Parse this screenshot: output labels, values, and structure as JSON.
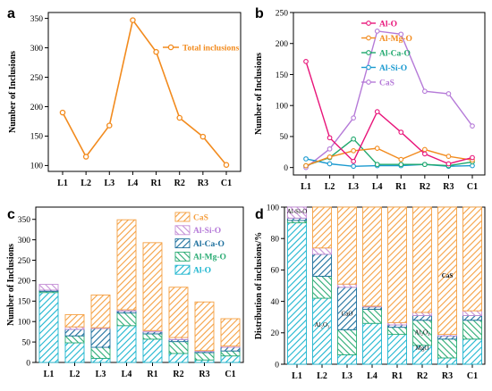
{
  "colors": {
    "Al-O": "#1cb5cf",
    "Al-Mg-O": "#2bac74",
    "Al-Ca-O": "#1b6e9c",
    "Al-Si-O": "#c58fd6",
    "CaS": "#f5a042",
    "line_Al-O": "#e8157a",
    "line_Al-Mg-O": "#f28b1e",
    "line_Al-Ca-O": "#1fa86d",
    "line_Al-Si-O": "#1a9ad0",
    "line_CaS": "#b57ad8",
    "total": "#f28b1e"
  },
  "chart_data": [
    {
      "panel": "a",
      "type": "line",
      "categories": [
        "L1",
        "L2",
        "L3",
        "L4",
        "R1",
        "R2",
        "R3",
        "C1"
      ],
      "series": [
        {
          "name": "Total inclusions",
          "values": [
            190,
            115,
            168,
            347,
            293,
            181,
            149,
            101
          ]
        }
      ],
      "ylabel": "Number of Inclusions",
      "ylim": [
        90,
        360
      ],
      "yticks": [
        100,
        150,
        200,
        250,
        300,
        350
      ]
    },
    {
      "panel": "b",
      "type": "line",
      "categories": [
        "L1",
        "L2",
        "L3",
        "L4",
        "R1",
        "R2",
        "R3",
        "C1"
      ],
      "series": [
        {
          "name": "Al-O",
          "values": [
            171,
            48,
            10,
            90,
            57,
            22,
            6,
            16
          ]
        },
        {
          "name": "Al-Mg-O",
          "values": [
            3,
            17,
            27,
            31,
            13,
            29,
            18,
            12
          ]
        },
        {
          "name": "Al-Ca-O",
          "values": [
            3,
            16,
            46,
            5,
            5,
            5,
            3,
            9
          ]
        },
        {
          "name": "Al-Si-O",
          "values": [
            14,
            6,
            2,
            3,
            3,
            5,
            2,
            3
          ]
        },
        {
          "name": "CaS",
          "values": [
            0,
            30,
            80,
            220,
            215,
            123,
            119,
            67
          ]
        }
      ],
      "ylabel": "Number of Inclusions",
      "ylim": [
        -12,
        250
      ],
      "yticks": [
        0,
        50,
        100,
        150,
        200,
        250
      ],
      "legend_position": "top-left"
    },
    {
      "panel": "c",
      "type": "bar",
      "stacked": true,
      "categories": [
        "L1",
        "L2",
        "L3",
        "L4",
        "R1",
        "R2",
        "R3",
        "C1"
      ],
      "series": [
        {
          "name": "Al-O",
          "values": [
            171,
            48,
            10,
            90,
            57,
            22,
            6,
            16
          ]
        },
        {
          "name": "Al-Mg-O",
          "values": [
            3,
            17,
            27,
            31,
            13,
            29,
            18,
            12
          ]
        },
        {
          "name": "Al-Ca-O",
          "values": [
            3,
            16,
            46,
            5,
            5,
            5,
            3,
            9
          ]
        },
        {
          "name": "Al-Si-O",
          "values": [
            14,
            6,
            2,
            3,
            3,
            5,
            2,
            3
          ]
        },
        {
          "name": "CaS",
          "values": [
            0,
            30,
            80,
            220,
            215,
            123,
            119,
            67
          ]
        }
      ],
      "ylabel": "Number of Inclusions",
      "ylim": [
        0,
        380
      ],
      "yticks": [
        0,
        50,
        100,
        150,
        200,
        250,
        300,
        350
      ],
      "legend_order": [
        "CaS",
        "Al-Si-O",
        "Al-Ca-O",
        "Al-Mg-O",
        "Al-O"
      ],
      "legend_position": "top-right"
    },
    {
      "panel": "d",
      "type": "bar",
      "stacked": true,
      "categories": [
        "L1",
        "L2",
        "L3",
        "L4",
        "R1",
        "R2",
        "R3",
        "C1"
      ],
      "series": [
        {
          "name": "Al-O",
          "values": [
            90,
            42,
            6,
            26,
            19,
            12,
            4,
            16
          ]
        },
        {
          "name": "Al-Mg-O",
          "values": [
            1.5,
            14,
            16,
            9,
            4.5,
            16,
            12,
            12
          ]
        },
        {
          "name": "Al-Ca-O",
          "values": [
            1.5,
            14,
            27,
            1.5,
            1.5,
            3,
            2,
            3
          ]
        },
        {
          "name": "Al-Si-O",
          "values": [
            7,
            4,
            2,
            0.5,
            1.5,
            2,
            1,
            3
          ]
        },
        {
          "name": "CaS",
          "values": [
            0,
            26,
            49,
            63,
            73.5,
            67,
            81,
            66
          ]
        }
      ],
      "ylabel": "Distribution of inclusions/%",
      "ylim": [
        0,
        100
      ],
      "yticks": [
        0,
        20,
        40,
        60,
        80,
        100
      ],
      "annotations": [
        "Al-Si-O",
        "Al₂O₃",
        "CaO",
        "Al₂O₃",
        "MgO",
        "CaS"
      ]
    }
  ],
  "panel_letters": {
    "a": "a",
    "b": "b",
    "c": "c",
    "d": "d"
  }
}
